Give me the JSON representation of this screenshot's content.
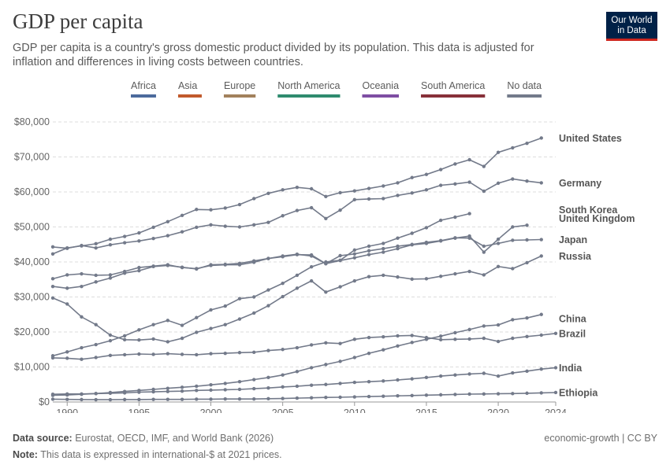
{
  "header": {
    "title": "GDP per capita",
    "subtitle": "GDP per capita is a country's gross domestic product divided by its population. This data is adjusted for inflation and differences in living costs between countries.",
    "logo_line1": "Our World",
    "logo_line2": "in Data"
  },
  "footer": {
    "source_label": "Data source:",
    "source_text": "Eurostat, OECD, IMF, and World Bank (2026)",
    "note_label": "Note:",
    "note_text": "This data is expressed in international-$ at 2021 prices.",
    "license": "economic-growth | CC BY"
  },
  "colors": {
    "line": "#737a8a",
    "grid": "#dddddd",
    "axis": "#999999"
  },
  "chart_data": {
    "type": "line",
    "title": "GDP per capita",
    "xlabel": "",
    "ylabel": "",
    "xlim": [
      1989,
      2024
    ],
    "ylim": [
      0,
      80000
    ],
    "x_ticks": [
      1990,
      1995,
      2000,
      2005,
      2010,
      2015,
      2020,
      2024
    ],
    "y_ticks": [
      0,
      10000,
      20000,
      30000,
      40000,
      50000,
      60000,
      70000,
      80000
    ],
    "y_tick_labels": [
      "$0",
      "$10,000",
      "$20,000",
      "$30,000",
      "$40,000",
      "$50,000",
      "$60,000",
      "$70,000",
      "$80,000"
    ],
    "grid": "horizontal dashed",
    "legend": [
      {
        "name": "Africa",
        "color": "#4c6a9c"
      },
      {
        "name": "Asia",
        "color": "#c15a2c"
      },
      {
        "name": "Europe",
        "color": "#a2815c"
      },
      {
        "name": "North America",
        "color": "#2e8b6e"
      },
      {
        "name": "Oceania",
        "color": "#7e4ea3"
      },
      {
        "name": "South America",
        "color": "#883039"
      },
      {
        "name": "No data",
        "color": "#737a8a"
      }
    ],
    "x": [
      1989,
      1990,
      1991,
      1992,
      1993,
      1994,
      1995,
      1996,
      1997,
      1998,
      1999,
      2000,
      2001,
      2002,
      2003,
      2004,
      2005,
      2006,
      2007,
      2008,
      2009,
      2010,
      2011,
      2012,
      2013,
      2014,
      2015,
      2016,
      2017,
      2018,
      2019,
      2020,
      2021,
      2022,
      2023,
      2024
    ],
    "series": [
      {
        "name": "United States",
        "values": [
          42300,
          44000,
          44600,
          45200,
          46500,
          47300,
          48300,
          49900,
          51500,
          53300,
          55000,
          54900,
          55400,
          56400,
          58100,
          59600,
          60600,
          61300,
          60900,
          58700,
          59800,
          60300,
          61000,
          61700,
          62600,
          64100,
          65000,
          66400,
          68000,
          69200,
          67300,
          71300,
          72600,
          73900,
          75400,
          null
        ]
      },
      {
        "name": "Germany",
        "values": [
          44300,
          43900,
          44700,
          44000,
          44900,
          45500,
          46000,
          46700,
          47500,
          48600,
          49900,
          50600,
          50200,
          50000,
          50600,
          51300,
          53200,
          54700,
          55500,
          52400,
          54800,
          57800,
          58000,
          58100,
          59000,
          59700,
          60600,
          61900,
          62300,
          62800,
          60200,
          62500,
          63700,
          63100,
          62600,
          null
        ]
      },
      {
        "name": "South Korea",
        "values": [
          13200,
          14300,
          15500,
          16400,
          17500,
          18900,
          20600,
          22100,
          23300,
          21900,
          24100,
          26300,
          27400,
          29500,
          30000,
          32000,
          33900,
          36200,
          38600,
          40000,
          40500,
          43400,
          44500,
          45300,
          46800,
          48200,
          49800,
          51900,
          52800,
          53800,
          null,
          null,
          null,
          null,
          null,
          null
        ]
      },
      {
        "name": "United Kingdom",
        "values": [
          35200,
          36300,
          36600,
          36200,
          36300,
          37300,
          38400,
          38800,
          39200,
          38400,
          38100,
          39000,
          39200,
          39200,
          39900,
          41000,
          41700,
          42200,
          41700,
          39500,
          40400,
          41200,
          42100,
          42800,
          43800,
          44900,
          45300,
          46000,
          46800,
          47400,
          42800,
          46500,
          50000,
          50500,
          null,
          null
        ]
      },
      {
        "name": "Japan",
        "values": [
          33000,
          32500,
          33000,
          34300,
          35400,
          36800,
          37500,
          38700,
          39000,
          38500,
          38000,
          39200,
          39300,
          39600,
          40300,
          41000,
          41500,
          42100,
          42000,
          39500,
          41800,
          42300,
          43200,
          43800,
          44500,
          45000,
          45600,
          46100,
          46900,
          46800,
          44500,
          45300,
          46200,
          46300,
          46400,
          null
        ]
      },
      {
        "name": "Russia",
        "values": [
          29700,
          28000,
          24300,
          22100,
          19100,
          17800,
          17700,
          18000,
          17200,
          18200,
          19900,
          21000,
          22100,
          23700,
          25400,
          27500,
          30100,
          32500,
          34600,
          31400,
          32900,
          34600,
          35800,
          36200,
          35700,
          35100,
          35200,
          35900,
          36600,
          37300,
          36300,
          38700,
          38100,
          39800,
          41700,
          null
        ]
      },
      {
        "name": "China",
        "values": [
          1900,
          2000,
          2200,
          2400,
          2700,
          3000,
          3300,
          3600,
          3900,
          4200,
          4500,
          4900,
          5300,
          5800,
          6400,
          7000,
          7700,
          8700,
          9800,
          10700,
          11600,
          12700,
          13900,
          14900,
          16000,
          17000,
          17900,
          18800,
          19800,
          20700,
          21700,
          22000,
          23500,
          24000,
          25000,
          null
        ]
      },
      {
        "name": "Brazil",
        "values": [
          12600,
          12500,
          12200,
          12700,
          13300,
          13500,
          13700,
          13600,
          13800,
          13600,
          13500,
          13800,
          13900,
          14100,
          14200,
          14700,
          15000,
          15500,
          16300,
          16900,
          16700,
          17900,
          18400,
          18600,
          18900,
          19000,
          18400,
          17800,
          17900,
          18000,
          18200,
          17300,
          18200,
          18700,
          19100,
          19600
        ]
      },
      {
        "name": "India",
        "values": [
          2200,
          2300,
          2300,
          2400,
          2500,
          2600,
          2800,
          2900,
          3000,
          3100,
          3300,
          3400,
          3500,
          3600,
          3800,
          4000,
          4300,
          4500,
          4800,
          5000,
          5300,
          5600,
          5800,
          6000,
          6300,
          6600,
          7000,
          7400,
          7700,
          8000,
          8200,
          7400,
          8300,
          8800,
          9400,
          9800
        ]
      },
      {
        "name": "Ethiopia",
        "values": [
          800,
          750,
          700,
          650,
          650,
          700,
          700,
          750,
          750,
          750,
          800,
          800,
          850,
          850,
          850,
          950,
          1000,
          1100,
          1200,
          1300,
          1350,
          1450,
          1550,
          1650,
          1750,
          1850,
          1950,
          2050,
          2150,
          2250,
          2300,
          2350,
          2400,
          2500,
          2600,
          2700
        ]
      }
    ]
  }
}
